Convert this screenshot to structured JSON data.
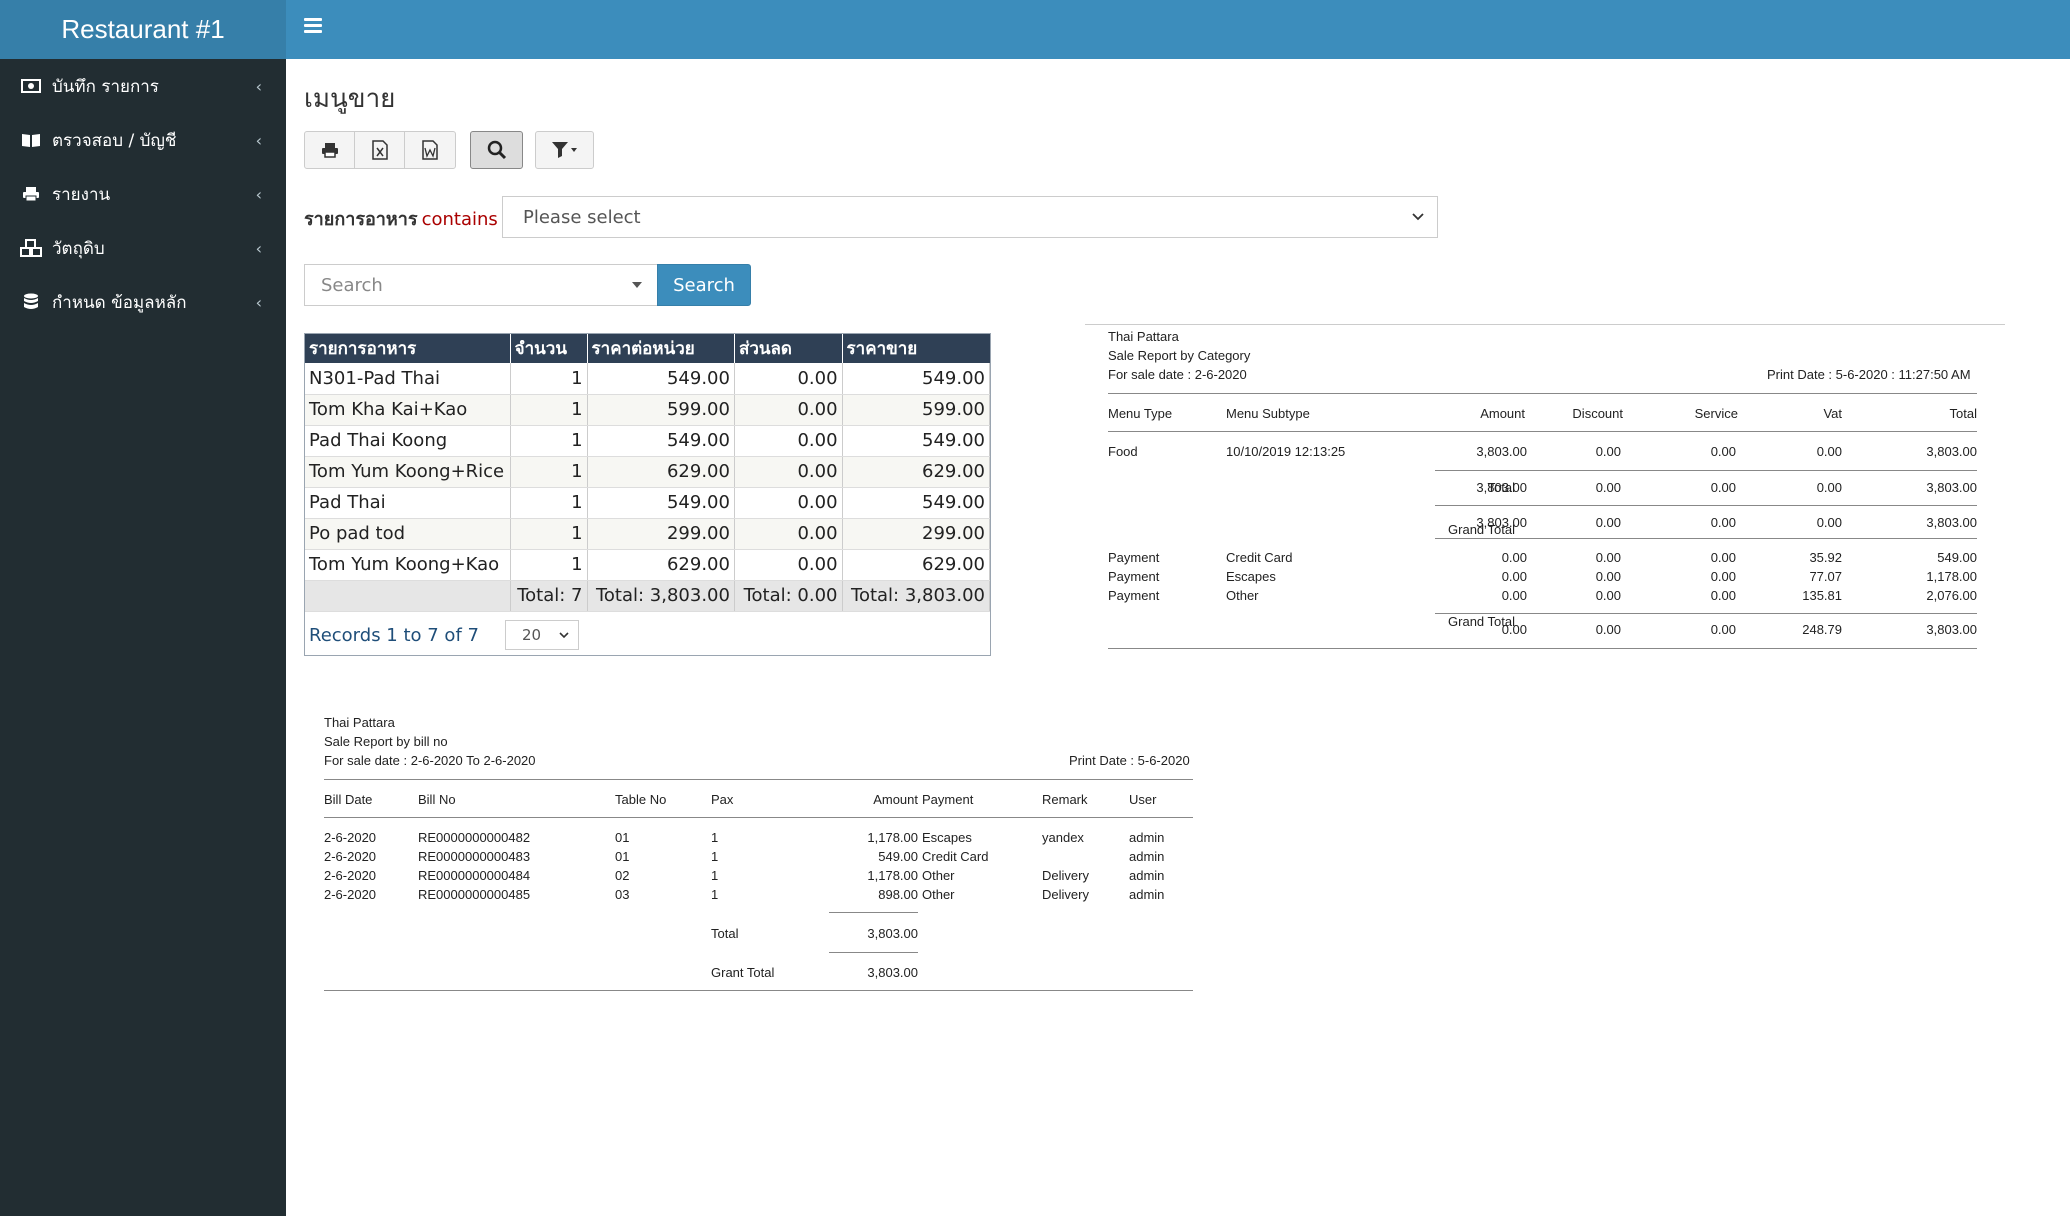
{
  "app": {
    "brand": "Restaurant #1"
  },
  "sidebar": {
    "items": [
      {
        "label": "บันทึก รายการ",
        "icon": "money-icon"
      },
      {
        "label": "ตรวจสอบ / บัญชี",
        "icon": "book-icon"
      },
      {
        "label": "รายงาน",
        "icon": "print-icon"
      },
      {
        "label": "วัตถุดิบ",
        "icon": "cubes-icon"
      },
      {
        "label": "กำหนด ข้อมูลหลัก",
        "icon": "database-icon"
      }
    ]
  },
  "page": {
    "title": "เมนูขาย"
  },
  "toolbar": {
    "buttons": [
      "print-icon",
      "excel-icon",
      "word-icon",
      "search-icon",
      "filter-icon"
    ]
  },
  "filter": {
    "field": "รายการอาหาร",
    "operator": "contains",
    "select_value": "Please select"
  },
  "search": {
    "placeholder": "Search",
    "button_label": "Search"
  },
  "grid": {
    "headers": [
      "รายการอาหาร",
      "จำนวน",
      "ราคาต่อหน่วย",
      "ส่วนลด",
      "ราคาขาย"
    ],
    "rows": [
      [
        "N301-Pad Thai",
        "1",
        "549.00",
        "0.00",
        "549.00"
      ],
      [
        "Tom Kha Kai+Kao",
        "1",
        "599.00",
        "0.00",
        "599.00"
      ],
      [
        "Pad Thai Koong",
        "1",
        "549.00",
        "0.00",
        "549.00"
      ],
      [
        "Tom Yum Koong+Rice",
        "1",
        "629.00",
        "0.00",
        "629.00"
      ],
      [
        "Pad Thai",
        "1",
        "549.00",
        "0.00",
        "549.00"
      ],
      [
        "Po pad tod",
        "1",
        "299.00",
        "0.00",
        "299.00"
      ],
      [
        "Tom Yum Koong+Kao",
        "1",
        "629.00",
        "0.00",
        "629.00"
      ]
    ],
    "totals": [
      "",
      "Total: 7",
      "Total: 3,803.00",
      "Total: 0.00",
      "Total: 3,803.00"
    ],
    "records_text": "Records 1 to 7 of 7",
    "page_size": "20"
  },
  "report_category": {
    "company": "Thai Pattara",
    "title": "Sale Report by Category",
    "sale_date": "For sale date : 2-6-2020",
    "print_date": "Print Date : 5-6-2020 : 11:27:50 AM",
    "headers": [
      "Menu Type",
      "Menu Subtype",
      "Amount",
      "Discount",
      "Service",
      "Vat",
      "Total"
    ],
    "row": [
      "Food",
      "10/10/2019 12:13:25",
      "3,803.00",
      "0.00",
      "0.00",
      "0.00",
      "3,803.00"
    ],
    "total_label": "Total",
    "total_values": [
      "3,803.00",
      "0.00",
      "0.00",
      "0.00",
      "3,803.00"
    ],
    "grand_total_label": "Grand Total",
    "grand_total_values": [
      "3,803.00",
      "0.00",
      "0.00",
      "0.00",
      "3,803.00"
    ],
    "payments": [
      [
        "Payment",
        "Credit Card",
        "0.00",
        "0.00",
        "0.00",
        "35.92",
        "549.00"
      ],
      [
        "Payment",
        "Escapes",
        "0.00",
        "0.00",
        "0.00",
        "77.07",
        "1,178.00"
      ],
      [
        "Payment",
        "Other",
        "0.00",
        "0.00",
        "0.00",
        "135.81",
        "2,076.00"
      ]
    ],
    "payment_grand_label": "Grand Total",
    "payment_grand_values": [
      "0.00",
      "0.00",
      "0.00",
      "248.79",
      "3,803.00"
    ]
  },
  "report_bill": {
    "company": "Thai Pattara",
    "title": "Sale Report by bill no",
    "sale_date": "For sale date : 2-6-2020 To 2-6-2020",
    "print_date": "Print Date : 5-6-2020",
    "headers": [
      "Bill Date",
      "Bill No",
      "Table No",
      "Pax",
      "Amount",
      "Payment",
      "Remark",
      "User"
    ],
    "rows": [
      [
        "2-6-2020",
        "RE0000000000482",
        "01",
        "1",
        "1,178.00",
        "Escapes",
        "yandex",
        "admin"
      ],
      [
        "2-6-2020",
        "RE0000000000483",
        "01",
        "1",
        "549.00",
        "Credit Card",
        "",
        "admin"
      ],
      [
        "2-6-2020",
        "RE0000000000484",
        "02",
        "1",
        "1,178.00",
        "Other",
        "Delivery",
        "admin"
      ],
      [
        "2-6-2020",
        "RE0000000000485",
        "03",
        "1",
        "898.00",
        "Other",
        "Delivery",
        "admin"
      ]
    ],
    "total_label": "Total",
    "total_value": "3,803.00",
    "grand_label": "Grant Total",
    "grand_value": "3,803.00"
  }
}
